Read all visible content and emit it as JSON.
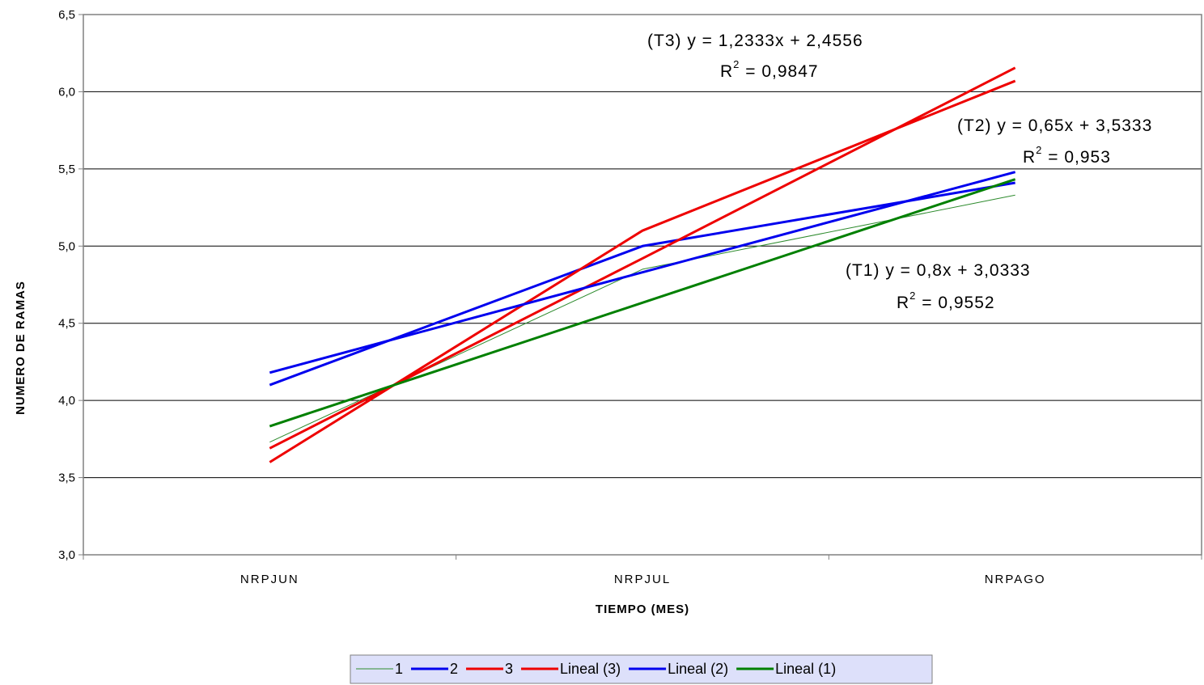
{
  "chart_data": {
    "type": "line",
    "xlabel": "TIEMPO (MES)",
    "ylabel": "NUMERO DE RAMAS",
    "categories": [
      "NRPJUN",
      "NRPJUL",
      "NRPAGO"
    ],
    "ylim": [
      3.0,
      6.5
    ],
    "yticks": [
      "3,0",
      "3,5",
      "4,0",
      "4,5",
      "5,0",
      "5,5",
      "6,0",
      "6,5"
    ],
    "yvalues": [
      3.0,
      3.5,
      4.0,
      4.5,
      5.0,
      5.5,
      6.0,
      6.5
    ],
    "grid": "horizontal",
    "legend_position": "bottom",
    "series": [
      {
        "name": "1",
        "values": [
          3.73,
          4.85,
          5.33
        ],
        "color": "#2e8b2e",
        "width": 1
      },
      {
        "name": "2",
        "values": [
          4.1,
          5.0,
          5.41
        ],
        "color": "#0000ee",
        "width": 3
      },
      {
        "name": "3",
        "values": [
          3.6,
          5.1,
          6.07
        ],
        "color": "#ee0000",
        "width": 3
      },
      {
        "name": "Lineal (3)",
        "values": [
          3.69,
          4.92,
          6.155
        ],
        "color": "#ee0000",
        "width": 3
      },
      {
        "name": "Lineal (2)",
        "values": [
          4.18,
          4.83,
          5.48
        ],
        "color": "#0000ee",
        "width": 3
      },
      {
        "name": "Lineal (1)",
        "values": [
          3.833,
          4.633,
          5.433
        ],
        "color": "#008000",
        "width": 3
      }
    ],
    "annotations": [
      {
        "id": "t3",
        "line1": "(T3) y = 1,2333x + 2,4556",
        "r2": "R",
        "sup": "2",
        "r2value": " = 0,9847"
      },
      {
        "id": "t2",
        "line1": "(T2) y = 0,65x + 3,5333",
        "r2": "R",
        "sup": "2",
        "r2value": " = 0,953"
      },
      {
        "id": "t1",
        "line1": "(T1) y = 0,8x + 3,0333",
        "r2": "R",
        "sup": "2",
        "r2value": " = 0,9552"
      }
    ]
  }
}
